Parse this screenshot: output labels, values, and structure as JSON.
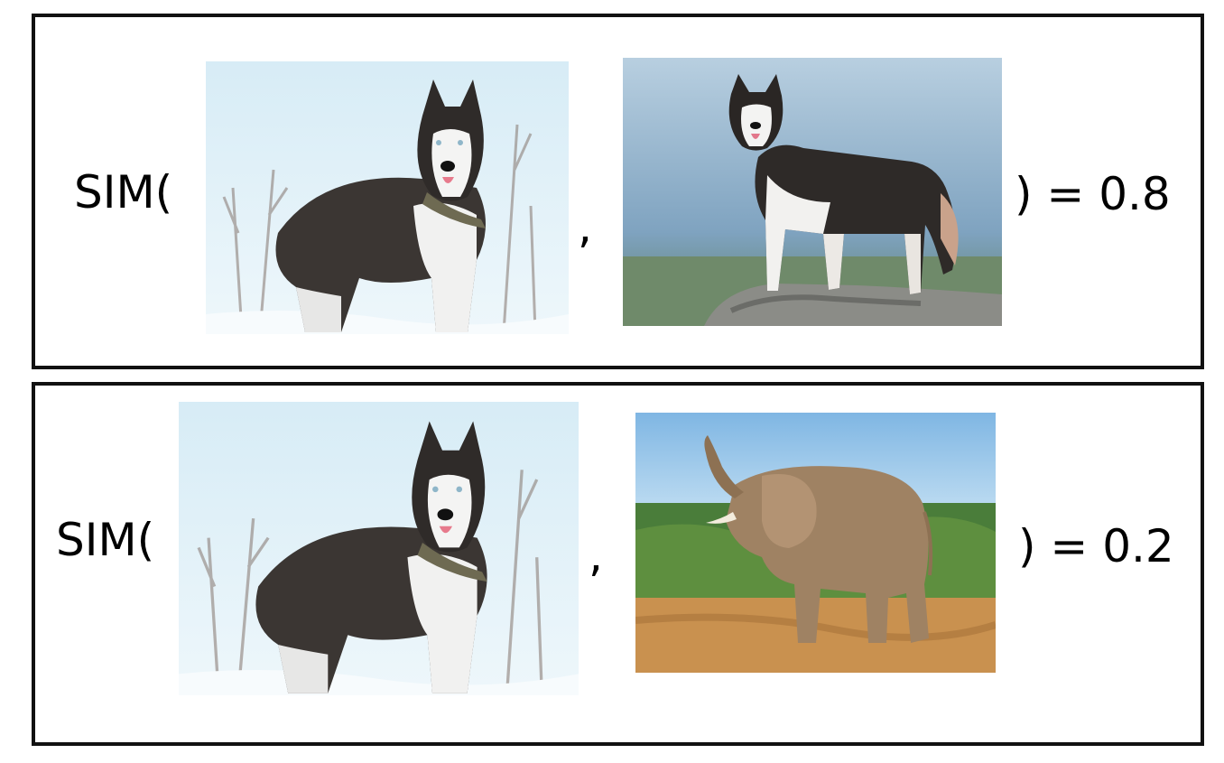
{
  "rows": [
    {
      "fn_open": "SIM(",
      "separator": ",",
      "result": ") = 0.8",
      "left_image": {
        "subject": "husky-in-snow"
      },
      "right_image": {
        "subject": "husky-on-rock"
      }
    },
    {
      "fn_open": "SIM(",
      "separator": ",",
      "result": ") = 0.2",
      "left_image": {
        "subject": "husky-in-snow"
      },
      "right_image": {
        "subject": "elephant-savanna"
      }
    }
  ]
}
